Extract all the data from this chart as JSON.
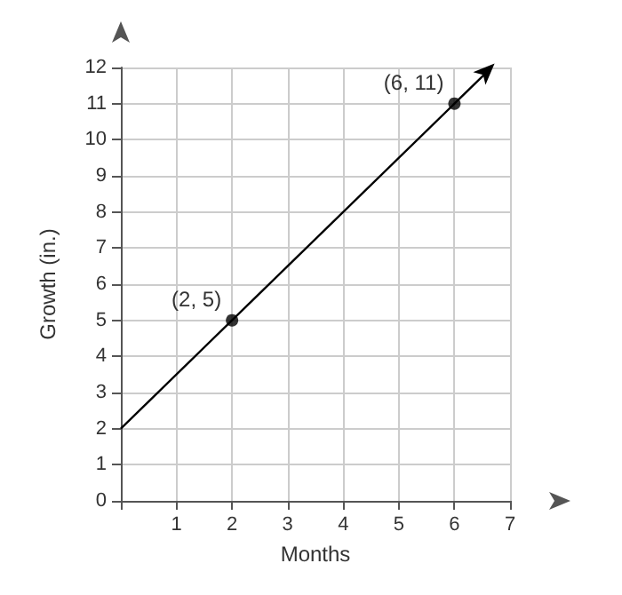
{
  "chart_data": {
    "type": "line",
    "xlabel": "Months",
    "ylabel": "Growth (in.)",
    "xlim": [
      0,
      7
    ],
    "xticks": [
      {
        "value": 0,
        "label": null
      },
      1,
      2,
      3,
      4,
      5,
      6,
      7
    ],
    "ylim": [
      0,
      12
    ],
    "yticks": [
      0,
      1,
      2,
      3,
      4,
      5,
      6,
      7,
      8,
      9,
      10,
      11,
      12
    ],
    "grid": true,
    "series": [
      {
        "x": [
          0,
          2,
          6,
          6.6
        ],
        "values": [
          2,
          5,
          11,
          11.9
        ],
        "color": "#000000",
        "marker": "none"
      },
      {
        "type": "scatter",
        "x": [
          2,
          6
        ],
        "values": [
          5,
          11
        ],
        "color": "#000000",
        "marker": "circle"
      }
    ],
    "annotations": [
      {
        "text": "(2, 5)",
        "x": 2,
        "y": 5
      },
      {
        "text": "(6, 11)",
        "x": 6,
        "y": 11
      }
    ]
  }
}
